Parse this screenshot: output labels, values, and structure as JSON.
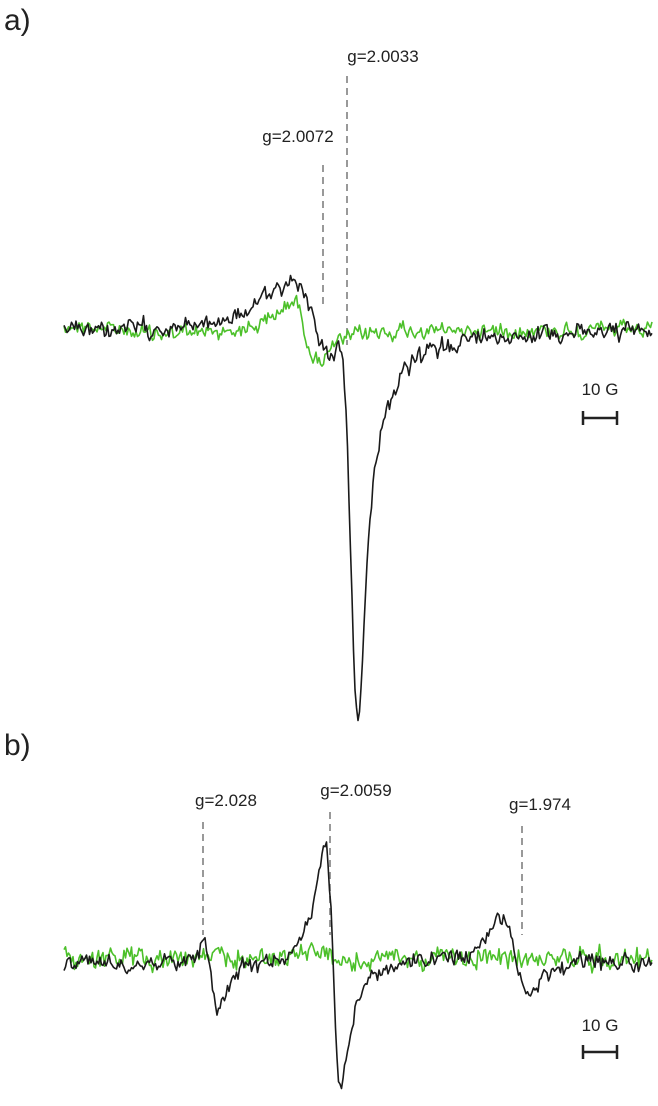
{
  "panels": [
    {
      "label": "a)",
      "annotations": [
        "g=2.0033",
        "g=2.0072"
      ],
      "scale_bar": "10 G"
    },
    {
      "label": "b)",
      "annotations": [
        "g=2.028",
        "g=2.0059",
        "g=1.974"
      ],
      "scale_bar": "10 G"
    }
  ]
}
